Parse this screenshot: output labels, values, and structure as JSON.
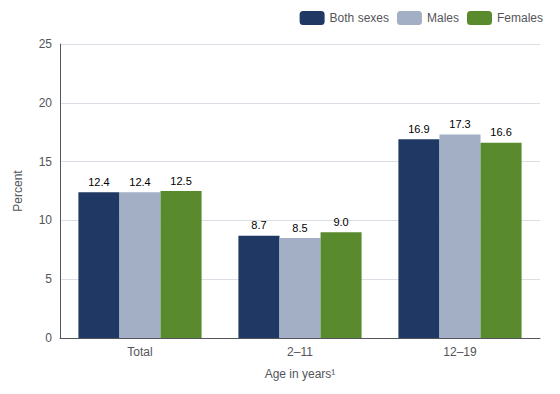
{
  "chart_data": {
    "type": "bar",
    "xlabel": "Age in years¹",
    "ylabel": "Percent",
    "categories": [
      "Total",
      "2–11",
      "12–19"
    ],
    "series": [
      {
        "name": "Both sexes",
        "color": "#1f3864",
        "values": [
          12.4,
          8.7,
          16.9
        ]
      },
      {
        "name": "Males",
        "color": "#a2afc4",
        "values": [
          12.4,
          8.5,
          17.3
        ]
      },
      {
        "name": "Females",
        "color": "#5a8a2e",
        "values": [
          12.5,
          9.0,
          16.6
        ],
        "value_labels": [
          "12.5",
          "9.0",
          "16.6"
        ]
      }
    ],
    "ylim": [
      0,
      25
    ],
    "yticks": [
      0,
      5,
      10,
      15,
      20,
      25
    ],
    "grid": true,
    "legend": "upper right",
    "data_labels": true
  }
}
